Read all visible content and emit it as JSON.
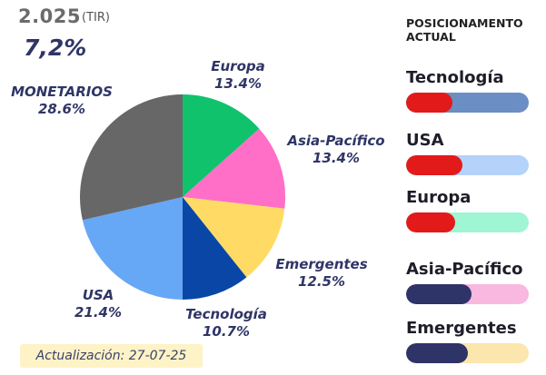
{
  "header": {
    "year": "2.025",
    "tir": "(TIR)",
    "rate": "7,2%"
  },
  "update_label": "Actualización: 27-07-25",
  "colors": {
    "europa": "#10c26c",
    "asia": "#ff6ec7",
    "emergentes": "#ffdb66",
    "tecnologia": "#0a46a6",
    "usa": "#66a8f5",
    "monetarios": "#676767"
  },
  "chart_data": {
    "type": "pie",
    "slices": [
      {
        "name": "Europa",
        "value": 13.4,
        "label": "13.4%",
        "color": "#10c26c"
      },
      {
        "name": "Asia-Pacífico",
        "value": 13.4,
        "label": "13.4%",
        "color": "#ff6ec7"
      },
      {
        "name": "Emergentes",
        "value": 12.5,
        "label": "12.5%",
        "color": "#ffdb66"
      },
      {
        "name": "Tecnología",
        "value": 10.7,
        "label": "10.7%",
        "color": "#0a46a6"
      },
      {
        "name": "USA",
        "value": 21.4,
        "label": "21.4%",
        "color": "#66a8f5"
      },
      {
        "name": "MONETARIOS",
        "value": 28.6,
        "label": "28.6%",
        "color": "#676767"
      }
    ]
  },
  "positioning": {
    "title_line1": "POSICIONAMENTO",
    "title_line2": "ACTUAL",
    "items": [
      {
        "label": "Tecnología",
        "level": 0.38,
        "fill_color": "#e21a1a",
        "track_color": "#6b8ec4"
      },
      {
        "label": "USA",
        "level": 0.46,
        "fill_color": "#e21a1a",
        "track_color": "#b4d2fa"
      },
      {
        "label": "Europa",
        "level": 0.4,
        "fill_color": "#e21a1a",
        "track_color": "#a0f5d5"
      },
      {
        "label": "Asia-Pacífico",
        "level": 0.53,
        "fill_color": "#2e3368",
        "track_color": "#f8b8df"
      },
      {
        "label": "Emergentes",
        "level": 0.5,
        "fill_color": "#2e3368",
        "track_color": "#fbe7ad"
      }
    ]
  }
}
